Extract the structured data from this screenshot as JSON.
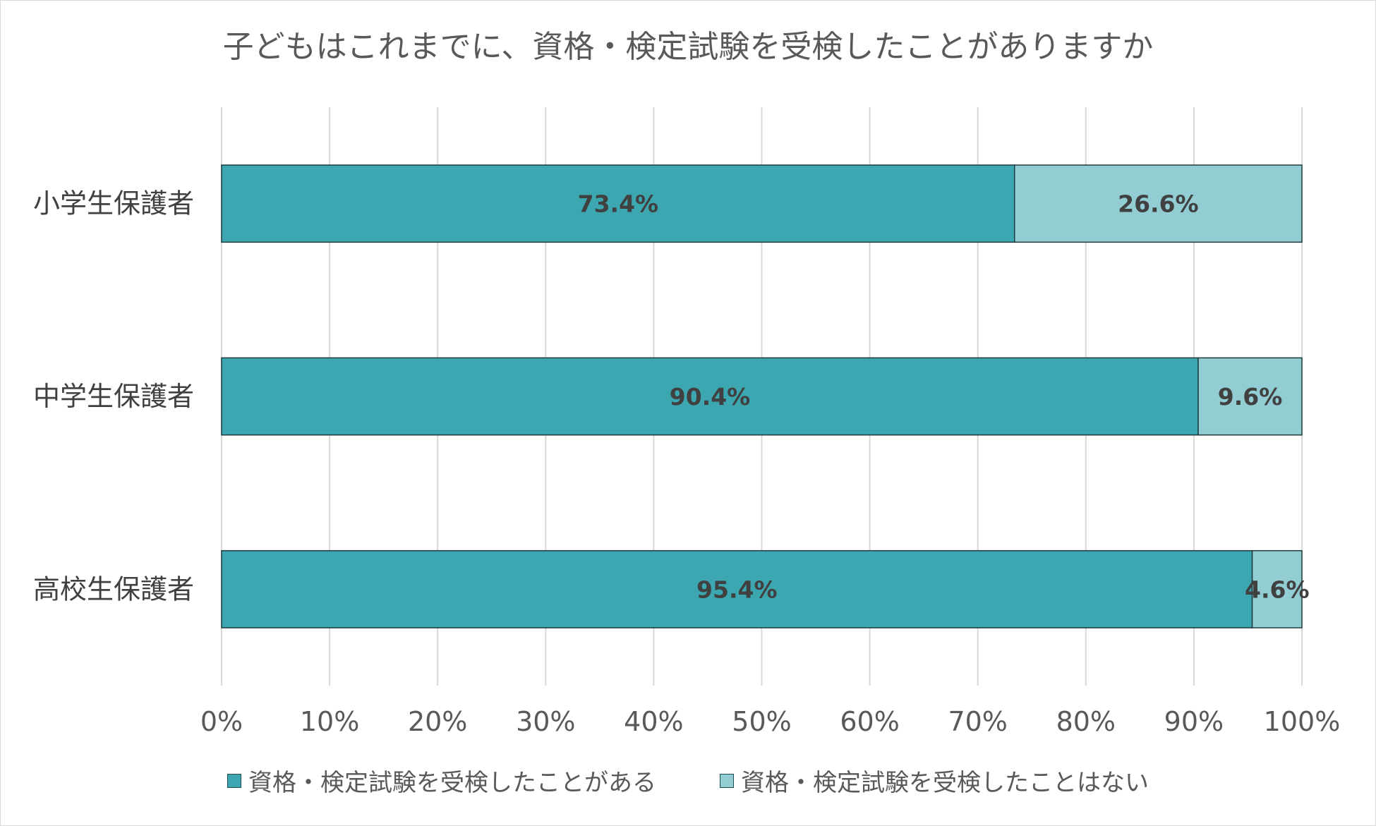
{
  "chart_data": {
    "type": "bar",
    "orientation": "horizontal",
    "stacked": "percent",
    "title": "子どもはこれまでに、資格・検定試験を受検したことがありますか",
    "categories": [
      "小学生保護者",
      "中学生保護者",
      "高校生保護者"
    ],
    "series": [
      {
        "name": "資格・検定試験を受検したことがある",
        "values": [
          73.4,
          90.4,
          95.4
        ],
        "labels": [
          "73.4%",
          "90.4%",
          "95.4%"
        ],
        "color": "#3ca7b0"
      },
      {
        "name": "資格・検定試験を受検したことはない",
        "values": [
          26.6,
          9.6,
          4.6
        ],
        "labels": [
          "26.6%",
          "9.6%",
          "4.6%"
        ],
        "color": "#92cdd4"
      }
    ],
    "xlim": [
      0,
      100
    ],
    "xticks": [
      "0%",
      "10%",
      "20%",
      "30%",
      "40%",
      "50%",
      "60%",
      "70%",
      "80%",
      "90%",
      "100%"
    ],
    "grid": "vertical",
    "legend": "bottom"
  }
}
